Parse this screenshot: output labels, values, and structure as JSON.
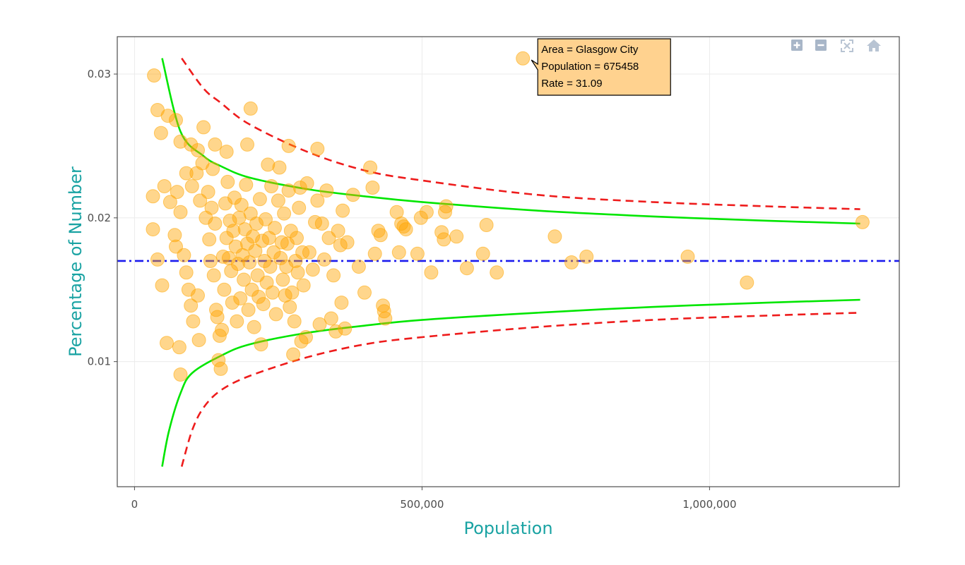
{
  "chart_data": {
    "type": "scatter",
    "xlabel": "Population",
    "ylabel": "Percentage of Number",
    "xlim": [
      -30000,
      1330000
    ],
    "ylim": [
      0.0013,
      0.0326
    ],
    "x_ticks": [
      {
        "value": 0,
        "label": "0"
      },
      {
        "value": 500000,
        "label": "500,000"
      },
      {
        "value": 1000000,
        "label": "1,000,000"
      }
    ],
    "y_ticks": [
      {
        "value": 0.01,
        "label": "0.01"
      },
      {
        "value": 0.02,
        "label": "0.02"
      },
      {
        "value": 0.03,
        "label": "0.03"
      }
    ],
    "grid": true,
    "mean_line": {
      "y": 0.017,
      "color": "#1a1aee",
      "style": "dash-dot"
    },
    "limits": {
      "p": 0.017,
      "inner_z": 1.96,
      "outer_z": 3.09,
      "inner_color": "#00e600",
      "outer_color": "#ee1c1c",
      "inner_x_range": [
        48000,
        1262000
      ],
      "outer_x_range": [
        82000,
        1262000
      ],
      "inner_curves": {
        "upper": [
          [
            48000,
            0.0311
          ],
          [
            80000,
            0.026
          ],
          [
            120000,
            0.0243
          ],
          [
            150000,
            0.0236
          ],
          [
            200000,
            0.0228
          ],
          [
            300000,
            0.022
          ],
          [
            400000,
            0.0215
          ],
          [
            500000,
            0.0211
          ],
          [
            700000,
            0.0205
          ],
          [
            900000,
            0.0201
          ],
          [
            1100000,
            0.0198
          ],
          [
            1262000,
            0.0196
          ]
        ],
        "lower": [
          [
            48000,
            0.0027
          ],
          [
            60000,
            0.0052
          ],
          [
            80000,
            0.0078
          ],
          [
            100000,
            0.0092
          ],
          [
            150000,
            0.0104
          ],
          [
            200000,
            0.0112
          ],
          [
            300000,
            0.012
          ],
          [
            400000,
            0.0125
          ],
          [
            500000,
            0.0129
          ],
          [
            700000,
            0.0134
          ],
          [
            900000,
            0.0138
          ],
          [
            1100000,
            0.0141
          ],
          [
            1262000,
            0.0143
          ]
        ]
      },
      "outer_curves": {
        "upper": [
          [
            82000,
            0.0311
          ],
          [
            120000,
            0.029
          ],
          [
            150000,
            0.028
          ],
          [
            200000,
            0.0265
          ],
          [
            300000,
            0.0246
          ],
          [
            400000,
            0.0233
          ],
          [
            500000,
            0.0226
          ],
          [
            700000,
            0.0216
          ],
          [
            900000,
            0.0211
          ],
          [
            1100000,
            0.0208
          ],
          [
            1262000,
            0.0206
          ]
        ],
        "lower": [
          [
            82000,
            0.0027
          ],
          [
            100000,
            0.0052
          ],
          [
            120000,
            0.0068
          ],
          [
            150000,
            0.008
          ],
          [
            200000,
            0.009
          ],
          [
            300000,
            0.0103
          ],
          [
            400000,
            0.0112
          ],
          [
            500000,
            0.0117
          ],
          [
            700000,
            0.0124
          ],
          [
            900000,
            0.0129
          ],
          [
            1100000,
            0.0132
          ],
          [
            1262000,
            0.0134
          ]
        ]
      }
    },
    "point_color": "#ffa500",
    "points": [
      [
        34000,
        0.0299
      ],
      [
        40000,
        0.0275
      ],
      [
        46000,
        0.0259
      ],
      [
        58000,
        0.0271
      ],
      [
        72000,
        0.0268
      ],
      [
        120000,
        0.0263
      ],
      [
        202000,
        0.0276
      ],
      [
        32000,
        0.0215
      ],
      [
        52000,
        0.0222
      ],
      [
        62000,
        0.0211
      ],
      [
        74000,
        0.0218
      ],
      [
        80000,
        0.0253
      ],
      [
        98000,
        0.0251
      ],
      [
        110000,
        0.0247
      ],
      [
        140000,
        0.0251
      ],
      [
        160000,
        0.0246
      ],
      [
        196000,
        0.0251
      ],
      [
        268000,
        0.025
      ],
      [
        318000,
        0.0248
      ],
      [
        32000,
        0.0192
      ],
      [
        40000,
        0.0171
      ],
      [
        48000,
        0.0153
      ],
      [
        56000,
        0.0113
      ],
      [
        78000,
        0.011
      ],
      [
        80000,
        0.0091
      ],
      [
        70000,
        0.0188
      ],
      [
        72000,
        0.018
      ],
      [
        80000,
        0.0204
      ],
      [
        86000,
        0.0174
      ],
      [
        90000,
        0.0162
      ],
      [
        94000,
        0.015
      ],
      [
        98000,
        0.0139
      ],
      [
        102000,
        0.0128
      ],
      [
        110000,
        0.0146
      ],
      [
        112000,
        0.0115
      ],
      [
        90000,
        0.0231
      ],
      [
        100000,
        0.0222
      ],
      [
        108000,
        0.0231
      ],
      [
        114000,
        0.0212
      ],
      [
        118000,
        0.0238
      ],
      [
        124000,
        0.02
      ],
      [
        128000,
        0.0218
      ],
      [
        130000,
        0.0185
      ],
      [
        132000,
        0.017
      ],
      [
        134000,
        0.0207
      ],
      [
        136000,
        0.0234
      ],
      [
        138000,
        0.016
      ],
      [
        140000,
        0.0196
      ],
      [
        142000,
        0.0136
      ],
      [
        144000,
        0.0131
      ],
      [
        146000,
        0.0101
      ],
      [
        148000,
        0.0118
      ],
      [
        150000,
        0.0095
      ],
      [
        152000,
        0.0122
      ],
      [
        154000,
        0.0173
      ],
      [
        156000,
        0.015
      ],
      [
        158000,
        0.021
      ],
      [
        160000,
        0.0186
      ],
      [
        162000,
        0.0225
      ],
      [
        164000,
        0.0172
      ],
      [
        166000,
        0.0198
      ],
      [
        168000,
        0.0163
      ],
      [
        170000,
        0.0141
      ],
      [
        172000,
        0.0191
      ],
      [
        174000,
        0.0214
      ],
      [
        176000,
        0.018
      ],
      [
        178000,
        0.0128
      ],
      [
        180000,
        0.0168
      ],
      [
        182000,
        0.02
      ],
      [
        184000,
        0.0144
      ],
      [
        186000,
        0.0209
      ],
      [
        188000,
        0.0174
      ],
      [
        190000,
        0.0157
      ],
      [
        192000,
        0.0192
      ],
      [
        194000,
        0.0223
      ],
      [
        196000,
        0.0182
      ],
      [
        198000,
        0.0136
      ],
      [
        200000,
        0.0169
      ],
      [
        202000,
        0.0203
      ],
      [
        204000,
        0.015
      ],
      [
        206000,
        0.0187
      ],
      [
        208000,
        0.0124
      ],
      [
        210000,
        0.0177
      ],
      [
        212000,
        0.0196
      ],
      [
        214000,
        0.016
      ],
      [
        216000,
        0.0145
      ],
      [
        218000,
        0.0213
      ],
      [
        220000,
        0.0112
      ],
      [
        222000,
        0.0184
      ],
      [
        224000,
        0.014
      ],
      [
        226000,
        0.017
      ],
      [
        228000,
        0.0199
      ],
      [
        230000,
        0.0155
      ],
      [
        232000,
        0.0237
      ],
      [
        234000,
        0.0186
      ],
      [
        236000,
        0.0166
      ],
      [
        238000,
        0.0222
      ],
      [
        240000,
        0.0148
      ],
      [
        242000,
        0.0176
      ],
      [
        244000,
        0.0193
      ],
      [
        246000,
        0.0133
      ],
      [
        250000,
        0.0212
      ],
      [
        252000,
        0.0235
      ],
      [
        254000,
        0.0172
      ],
      [
        256000,
        0.0183
      ],
      [
        258000,
        0.0157
      ],
      [
        260000,
        0.0203
      ],
      [
        262000,
        0.0146
      ],
      [
        264000,
        0.0166
      ],
      [
        266000,
        0.0182
      ],
      [
        268000,
        0.0219
      ],
      [
        270000,
        0.0138
      ],
      [
        272000,
        0.0191
      ],
      [
        274000,
        0.0148
      ],
      [
        276000,
        0.0105
      ],
      [
        278000,
        0.0128
      ],
      [
        280000,
        0.017
      ],
      [
        282000,
        0.0186
      ],
      [
        284000,
        0.0162
      ],
      [
        286000,
        0.0207
      ],
      [
        288000,
        0.0221
      ],
      [
        290000,
        0.0114
      ],
      [
        292000,
        0.0176
      ],
      [
        294000,
        0.0153
      ],
      [
        298000,
        0.0117
      ],
      [
        300000,
        0.0224
      ],
      [
        304000,
        0.0176
      ],
      [
        310000,
        0.0164
      ],
      [
        314000,
        0.0197
      ],
      [
        318000,
        0.0212
      ],
      [
        322000,
        0.0126
      ],
      [
        326000,
        0.0196
      ],
      [
        330000,
        0.0171
      ],
      [
        334000,
        0.0219
      ],
      [
        338000,
        0.0186
      ],
      [
        342000,
        0.013
      ],
      [
        346000,
        0.016
      ],
      [
        350000,
        0.0121
      ],
      [
        354000,
        0.0191
      ],
      [
        358000,
        0.0181
      ],
      [
        360000,
        0.0141
      ],
      [
        362000,
        0.0205
      ],
      [
        366000,
        0.0123
      ],
      [
        370000,
        0.0183
      ],
      [
        380000,
        0.0216
      ],
      [
        390000,
        0.0166
      ],
      [
        400000,
        0.0148
      ],
      [
        410000,
        0.0235
      ],
      [
        414000,
        0.0221
      ],
      [
        418000,
        0.0175
      ],
      [
        424000,
        0.0191
      ],
      [
        428000,
        0.0188
      ],
      [
        432000,
        0.0139
      ],
      [
        434000,
        0.0135
      ],
      [
        436000,
        0.013
      ],
      [
        456000,
        0.0204
      ],
      [
        460000,
        0.0176
      ],
      [
        464000,
        0.0196
      ],
      [
        468000,
        0.0194
      ],
      [
        472000,
        0.0192
      ],
      [
        492000,
        0.0175
      ],
      [
        498000,
        0.02
      ],
      [
        508000,
        0.0204
      ],
      [
        516000,
        0.0162
      ],
      [
        534000,
        0.019
      ],
      [
        538000,
        0.0185
      ],
      [
        540000,
        0.0204
      ],
      [
        542000,
        0.0208
      ],
      [
        560000,
        0.0187
      ],
      [
        578000,
        0.0165
      ],
      [
        606000,
        0.0175
      ],
      [
        612000,
        0.0195
      ],
      [
        630000,
        0.0162
      ],
      [
        731000,
        0.0187
      ],
      [
        760000,
        0.0169
      ],
      [
        786000,
        0.0173
      ],
      [
        962000,
        0.0173
      ],
      [
        1065000,
        0.0155
      ],
      [
        1266000,
        0.0197
      ],
      [
        675458,
        0.03109
      ]
    ],
    "tooltip": {
      "lines": [
        "Area = Glasgow City",
        "Population = 675458",
        "Rate = 31.09"
      ],
      "point": [
        675458,
        0.03109
      ]
    }
  },
  "modebar": {
    "buttons": [
      {
        "name": "zoom-in-icon",
        "title": "Zoom in"
      },
      {
        "name": "zoom-out-icon",
        "title": "Zoom out"
      },
      {
        "name": "autoscale-icon",
        "title": "Autoscale"
      },
      {
        "name": "reset-axes-icon",
        "title": "Reset axes"
      }
    ]
  }
}
